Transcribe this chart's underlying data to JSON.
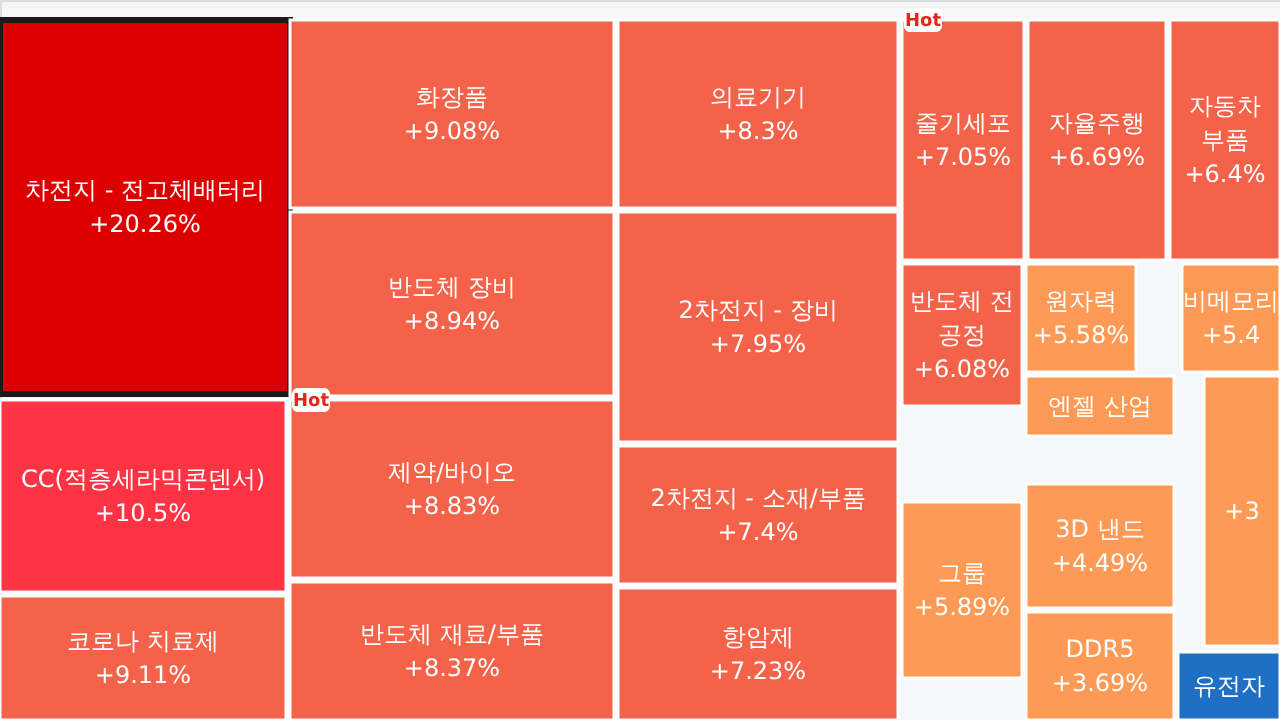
{
  "chart_data": {
    "type": "other",
    "categories": [
      "차전지 - 전고체배터리",
      "CC(적층세라믹콘덴서)",
      "코로나 치료제",
      "화장품",
      "반도체 장비",
      "제약/바이오",
      "반도체 재료/부품",
      "의료기기",
      "2차전지 - 장비",
      "2차전지 - 소재/부품",
      "항암제",
      "줄기세포",
      "자율주행",
      "자동차\n부품",
      "반도체 전\n공정",
      "그룹",
      "원자력",
      "비메모리",
      "엔젤 산업",
      "3D 낸드",
      "DDR5",
      null,
      "유전자"
    ],
    "values": [
      20.26,
      10.5,
      9.11,
      9.08,
      8.94,
      8.83,
      8.37,
      8.3,
      7.95,
      7.4,
      7.23,
      7.05,
      6.69,
      6.4,
      6.08,
      5.89,
      5.58,
      null,
      null,
      4.49,
      3.69,
      null,
      null
    ],
    "value_labels": [
      "+20.26%",
      "+10.5%",
      "+9.11%",
      "+9.08%",
      "+8.94%",
      "+8.83%",
      "+8.37%",
      "+8.3%",
      "+7.95%",
      "+7.4%",
      "+7.23%",
      "+7.05%",
      "+6.69%",
      "+6.4%",
      "+6.08%",
      "+5.89%",
      "+5.58%",
      "+5.4",
      null,
      "+4.49%",
      "+3.69%",
      "+3",
      null
    ],
    "colors": [
      "#dd0000",
      "#ff3344",
      "#f4624a",
      "#f4624a",
      "#f4624a",
      "#f4624a",
      "#f4624a",
      "#f4624a",
      "#f4624a",
      "#f4624a",
      "#f4624a",
      "#f4624a",
      "#f4624a",
      "#f4624a",
      "#f4624a",
      "#fe9a55",
      "#fe9a55",
      "#fe9a55",
      "#fe9a55",
      "#fe9a55",
      "#fe9a55",
      "#fe9a55",
      "#1f6fc5"
    ],
    "annotations": [
      "Hot",
      "Hot"
    ]
  }
}
